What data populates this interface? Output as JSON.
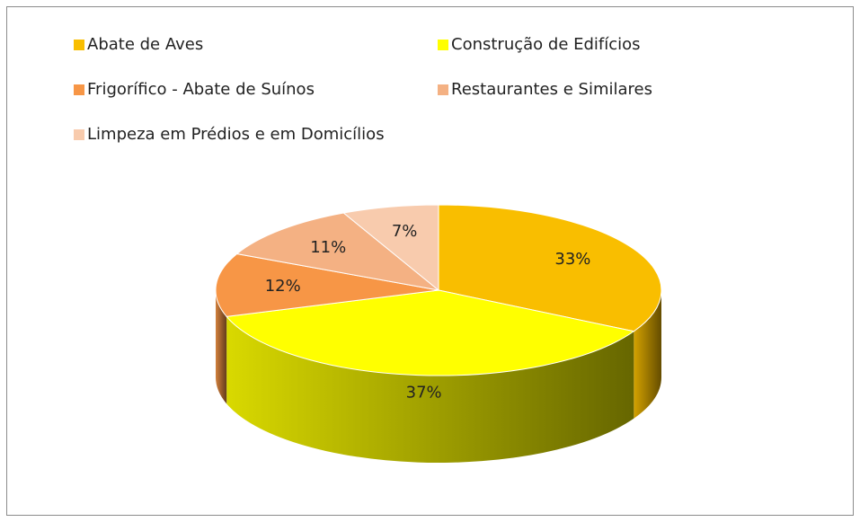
{
  "chart_data": {
    "type": "pie",
    "categories": [
      "Abate de Aves",
      "Construção de Edifícios",
      "Frigorífico - Abate de Suínos",
      "Restaurantes e Similares",
      "Limpeza em Prédios e em Domicílios"
    ],
    "values": [
      33,
      37,
      12,
      11,
      7
    ],
    "value_labels": [
      "33%",
      "37%",
      "12%",
      "11%",
      "7%"
    ],
    "colors": [
      "#F9BE00",
      "#FFFF00",
      "#F79646",
      "#F4B183",
      "#F8CBAD"
    ],
    "legend": "top"
  }
}
